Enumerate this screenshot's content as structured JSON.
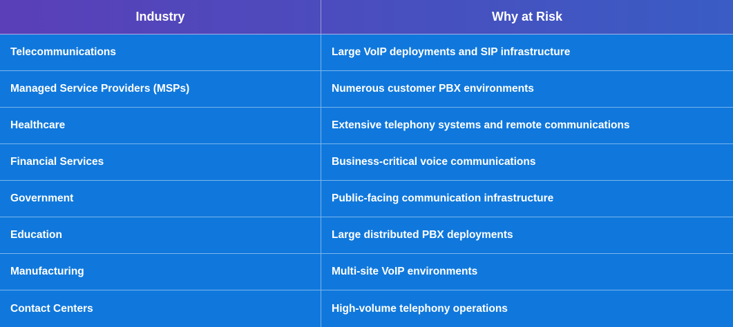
{
  "table": {
    "headers": [
      "Industry",
      "Why at Risk"
    ],
    "rows": [
      [
        "Telecommunications",
        "Large VoIP deployments and SIP infrastructure"
      ],
      [
        "Managed Service Providers (MSPs)",
        "Numerous customer PBX environments"
      ],
      [
        "Healthcare",
        "Extensive telephony systems and remote communications"
      ],
      [
        "Financial Services",
        "Business-critical voice communications"
      ],
      [
        "Government",
        "Public-facing communication infrastructure"
      ],
      [
        "Education",
        "Large distributed PBX deployments"
      ],
      [
        "Manufacturing",
        "Multi-site VoIP environments"
      ],
      [
        "Contact Centers",
        "High-volume telephony operations"
      ]
    ]
  },
  "colors": {
    "header_start": "#5a3fb8",
    "header_end": "#3a5cc4",
    "body_background": "#1078dc",
    "text": "#ffffff"
  }
}
